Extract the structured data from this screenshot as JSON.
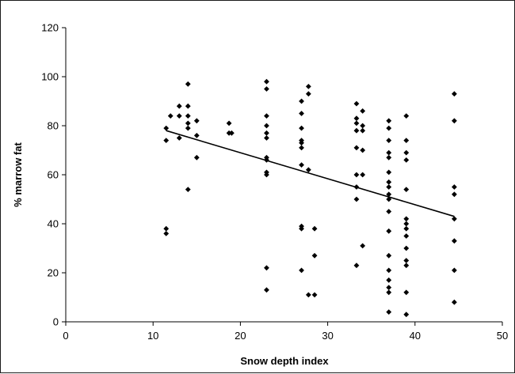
{
  "chart_data": {
    "type": "scatter",
    "title": "",
    "xlabel": "Snow depth index",
    "ylabel": "% marrow  fat",
    "xlim": [
      0,
      50
    ],
    "ylim": [
      0,
      120
    ],
    "xticks": [
      0,
      10,
      20,
      30,
      40,
      50
    ],
    "yticks": [
      0,
      20,
      40,
      60,
      80,
      100,
      120
    ],
    "grid": false,
    "legend": "none",
    "colors": {
      "marker": "#000000",
      "trendline": "#000000",
      "axis": "#000000",
      "frame": "#1a1a1a"
    },
    "series": [
      {
        "marker": "diamond",
        "points": [
          [
            11.5,
            79
          ],
          [
            11.5,
            74
          ],
          [
            12,
            84
          ],
          [
            11.5,
            38
          ],
          [
            11.5,
            36
          ],
          [
            13,
            88
          ],
          [
            13,
            84
          ],
          [
            13,
            75
          ],
          [
            14,
            97
          ],
          [
            14,
            88
          ],
          [
            14,
            84
          ],
          [
            14,
            81
          ],
          [
            14,
            79
          ],
          [
            14,
            54
          ],
          [
            15,
            82
          ],
          [
            15,
            76
          ],
          [
            15,
            67
          ],
          [
            18.7,
            81
          ],
          [
            19,
            77
          ],
          [
            18.7,
            77
          ],
          [
            23,
            98
          ],
          [
            23,
            95
          ],
          [
            23,
            84
          ],
          [
            23,
            80
          ],
          [
            23,
            77
          ],
          [
            23,
            75
          ],
          [
            23,
            67
          ],
          [
            23,
            66
          ],
          [
            23,
            61
          ],
          [
            23,
            60
          ],
          [
            23,
            22
          ],
          [
            23,
            13
          ],
          [
            27,
            90
          ],
          [
            27,
            85
          ],
          [
            27,
            79
          ],
          [
            27,
            74
          ],
          [
            27,
            73
          ],
          [
            27,
            71
          ],
          [
            27,
            64
          ],
          [
            27,
            39
          ],
          [
            27,
            38
          ],
          [
            27,
            21
          ],
          [
            27.8,
            96
          ],
          [
            27.8,
            93
          ],
          [
            27.8,
            62
          ],
          [
            27.8,
            11
          ],
          [
            28.5,
            38
          ],
          [
            28.5,
            27
          ],
          [
            28.5,
            11
          ],
          [
            33.3,
            89
          ],
          [
            33.3,
            83
          ],
          [
            33.3,
            81
          ],
          [
            33.3,
            78
          ],
          [
            33.3,
            71
          ],
          [
            33.3,
            60
          ],
          [
            33.3,
            55
          ],
          [
            33.3,
            50
          ],
          [
            33.3,
            23
          ],
          [
            34,
            86
          ],
          [
            34,
            80
          ],
          [
            34,
            78
          ],
          [
            34,
            70
          ],
          [
            34,
            60
          ],
          [
            34,
            31
          ],
          [
            37,
            82
          ],
          [
            37,
            79
          ],
          [
            37,
            74
          ],
          [
            37,
            69
          ],
          [
            37,
            67
          ],
          [
            37,
            61
          ],
          [
            37,
            57
          ],
          [
            37,
            55
          ],
          [
            37,
            52
          ],
          [
            37,
            50
          ],
          [
            37,
            45
          ],
          [
            37,
            37
          ],
          [
            37,
            27
          ],
          [
            37,
            21
          ],
          [
            37,
            17
          ],
          [
            37,
            14
          ],
          [
            37,
            12
          ],
          [
            37,
            4
          ],
          [
            39,
            84
          ],
          [
            39,
            74
          ],
          [
            39,
            69
          ],
          [
            39,
            66
          ],
          [
            39,
            54
          ],
          [
            39,
            42
          ],
          [
            39,
            40
          ],
          [
            39,
            38
          ],
          [
            39,
            35
          ],
          [
            39,
            30
          ],
          [
            39,
            25
          ],
          [
            39,
            23
          ],
          [
            39,
            12
          ],
          [
            39,
            3
          ],
          [
            44.5,
            93
          ],
          [
            44.5,
            82
          ],
          [
            44.5,
            55
          ],
          [
            44.5,
            52
          ],
          [
            44.5,
            42
          ],
          [
            44.5,
            33
          ],
          [
            44.5,
            21
          ],
          [
            44.5,
            8
          ]
        ]
      }
    ],
    "trendline": {
      "x": [
        11.5,
        44.5
      ],
      "y": [
        78,
        43
      ]
    }
  }
}
